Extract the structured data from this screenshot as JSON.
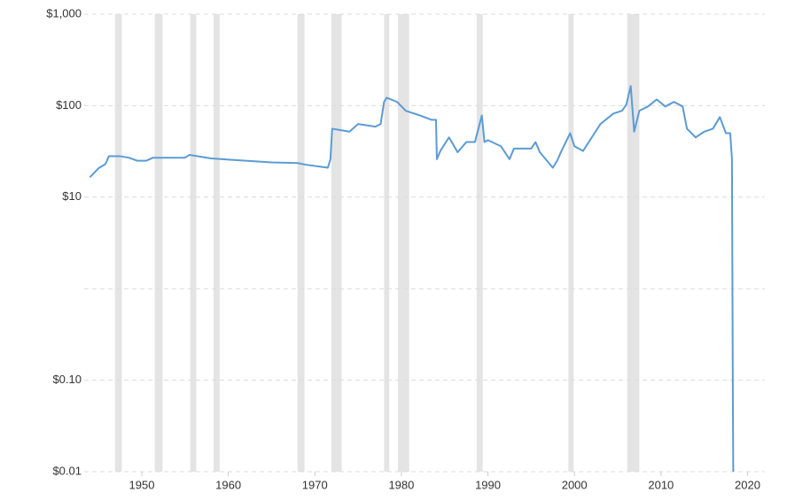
{
  "chart_data": {
    "type": "line",
    "log_y": true,
    "grid": true,
    "xlim": [
      1944,
      2022
    ],
    "xticks": [
      1950,
      1960,
      1970,
      1980,
      1990,
      2000,
      2010,
      2020
    ],
    "ylim": [
      0.01,
      1000
    ],
    "yticks": [
      {
        "value": 0.01,
        "label": "$0.01"
      },
      {
        "value": 0.1,
        "label": "$0.10"
      },
      {
        "value": 1,
        "label": null
      },
      {
        "value": 10,
        "label": "$10"
      },
      {
        "value": 100,
        "label": "$100"
      },
      {
        "value": 1000,
        "label": "$1,000"
      }
    ],
    "recession_color": "#e4e4e4",
    "recessions": [
      [
        1946.9,
        1947.7
      ],
      [
        1951.5,
        1952.4
      ],
      [
        1955.6,
        1956.3
      ],
      [
        1958.3,
        1959.0
      ],
      [
        1968.0,
        1968.8
      ],
      [
        1971.9,
        1973.1
      ],
      [
        1978.0,
        1978.6
      ],
      [
        1979.6,
        1980.9
      ],
      [
        1988.7,
        1989.4
      ],
      [
        1999.3,
        1999.9
      ],
      [
        2006.1,
        2007.5
      ]
    ],
    "series": [
      {
        "color": "#5b9bd5",
        "x": [
          1944.0,
          1945.0,
          1945.8,
          1946.2,
          1947.5,
          1948.5,
          1949.5,
          1950.5,
          1951.3,
          1955.0,
          1955.5,
          1958.0,
          1965.0,
          1968.0,
          1969.0,
          1971.5,
          1971.8,
          1972.0,
          1974.0,
          1975.0,
          1977.0,
          1977.6,
          1978.0,
          1978.3,
          1979.5,
          1980.5,
          1982.0,
          1983.5,
          1984.0,
          1984.1,
          1984.5,
          1985.5,
          1986.5,
          1987.5,
          1988.5,
          1989.3,
          1989.6,
          1990.0,
          1991.5,
          1992.5,
          1993.0,
          1995.0,
          1995.5,
          1996.0,
          1997.5,
          1998.0,
          1998.5,
          1999.5,
          2000.0,
          2001.0,
          2002.0,
          2003.0,
          2004.5,
          2005.5,
          2006.0,
          2006.5,
          2006.9,
          2007.5,
          2008.5,
          2009.5,
          2010.5,
          2011.5,
          2012.5,
          2013.0,
          2014.0,
          2015.0,
          2016.0,
          2016.8,
          2017.5,
          2018.0,
          2018.2,
          2018.3,
          2018.35
        ],
        "values": [
          16.5,
          20.7,
          23,
          28,
          28,
          27,
          25,
          25,
          27,
          27,
          29,
          26.5,
          24,
          23.6,
          22.6,
          21,
          26,
          56,
          52,
          63,
          59,
          63,
          110,
          122,
          110,
          88,
          79,
          70,
          70,
          26,
          32,
          45,
          31,
          40,
          40,
          78,
          40,
          42,
          36,
          26,
          34,
          34,
          40,
          31,
          21,
          25,
          32,
          50,
          36,
          32,
          45,
          63,
          82,
          88,
          103,
          164,
          52,
          88,
          98,
          117,
          98,
          110,
          98,
          56,
          45,
          52,
          56,
          75,
          50,
          50,
          26,
          0.08,
          0.01
        ]
      }
    ]
  }
}
